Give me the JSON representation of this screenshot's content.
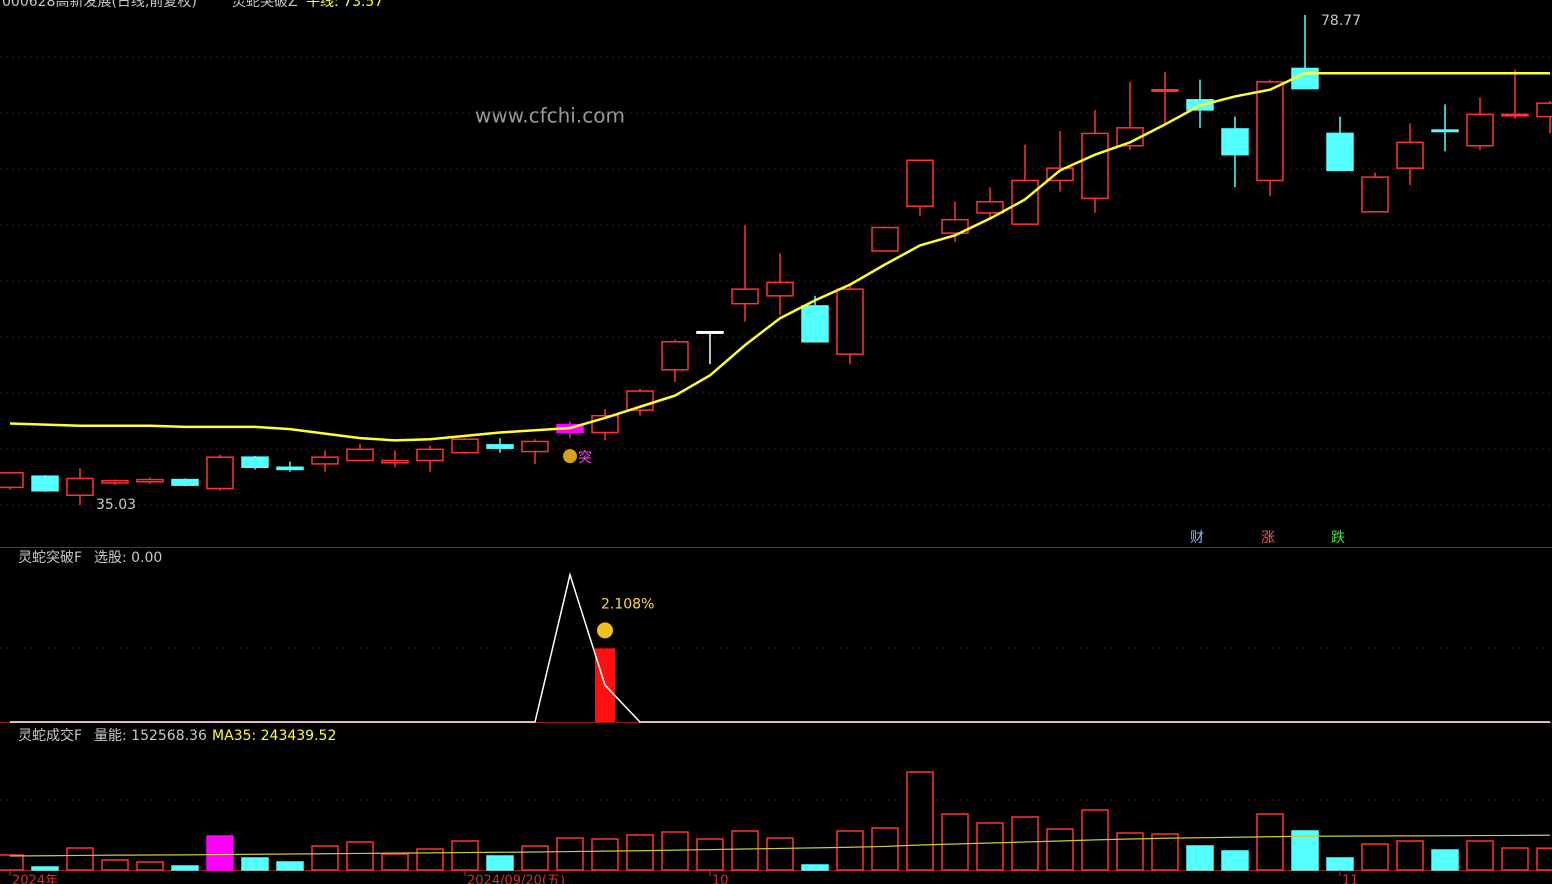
{
  "header": {
    "symbol": "000628高新发展(日线,前复权)",
    "indicator": "灵蛇突破Z",
    "line_label": "牛线: 73.57"
  },
  "watermark": "www.cfchi.com",
  "buttons": [
    "财",
    "涨",
    "跌"
  ],
  "chart_data": [
    {
      "type": "candlestick",
      "hollow_color": "#ff3333",
      "open": [
        36.6,
        37.6,
        35.9,
        37.0,
        37.1,
        37.3,
        36.5,
        39.3,
        38.4,
        38.7,
        39.0,
        38.8,
        39.0,
        39.7,
        40.4,
        39.8,
        41.5,
        41.5,
        43.5,
        47.1,
        50.5,
        53.0,
        53.7,
        52.8,
        48.5,
        57.7,
        61.7,
        59.3,
        61.1,
        60.1,
        64.0,
        62.4,
        67.1,
        72.0,
        71.2,
        68.6,
        64.0,
        74.0,
        68.2,
        61.2,
        65.1,
        68.5,
        67.1,
        69.8,
        69.7
      ],
      "high": [
        38.0,
        37.7,
        38.3,
        37.3,
        37.5,
        37.4,
        39.5,
        39.4,
        38.9,
        39.9,
        40.5,
        39.9,
        40.3,
        41.0,
        41.0,
        40.9,
        42.5,
        43.6,
        45.4,
        49.8,
        50.5,
        60.0,
        57.5,
        53.7,
        54.6,
        59.9,
        65.8,
        62.1,
        63.4,
        67.2,
        68.4,
        70.3,
        72.8,
        73.7,
        73.0,
        69.7,
        73.0,
        78.77,
        69.7,
        64.7,
        69.1,
        70.8,
        71.4,
        73.9,
        71.1
      ],
      "low": [
        36.4,
        36.2,
        35.03,
        36.8,
        36.9,
        36.7,
        36.3,
        38.2,
        38.0,
        38.0,
        38.9,
        38.4,
        38.0,
        39.6,
        39.7,
        38.7,
        41.0,
        40.8,
        43.0,
        46.0,
        47.6,
        51.4,
        52.0,
        49.6,
        47.6,
        57.7,
        60.8,
        58.5,
        60.5,
        60.1,
        63.0,
        61.1,
        66.7,
        69.0,
        68.7,
        63.4,
        62.6,
        72.3,
        64.9,
        61.2,
        63.6,
        66.6,
        66.7,
        69.5,
        68.2
      ],
      "close": [
        37.9,
        36.3,
        37.4,
        37.2,
        37.3,
        36.8,
        39.3,
        38.4,
        38.2,
        39.3,
        40.0,
        39.0,
        40.0,
        40.9,
        40.1,
        40.7,
        42.2,
        43.0,
        45.2,
        49.6,
        50.5,
        54.3,
        54.9,
        49.6,
        54.3,
        59.8,
        65.8,
        60.5,
        62.1,
        64.0,
        65.1,
        68.2,
        68.7,
        72.1,
        70.3,
        66.3,
        72.8,
        72.2,
        64.9,
        64.3,
        67.4,
        68.4,
        69.9,
        69.9,
        70.9
      ],
      "colors": [
        "#ff3333",
        "#54ffff",
        "#ff3333",
        "#ff3333",
        "#ff3333",
        "#54ffff",
        "#ff3333",
        "#54ffff",
        "#54ffff",
        "#ff3333",
        "#ff3333",
        "#ff3333",
        "#ff3333",
        "#ff3333",
        "#54ffff",
        "#ff3333",
        "#ff00ff",
        "#ff3333",
        "#ff3333",
        "#ff3333",
        "#ffffff",
        "#ff3333",
        "#ff3333",
        "#54ffff",
        "#ff3333",
        "#ff3333",
        "#ff3333",
        "#ff3333",
        "#ff3333",
        "#ff3333",
        "#ff3333",
        "#ff3333",
        "#ff3333",
        "#ff3333",
        "#54ffff",
        "#54ffff",
        "#ff3333",
        "#54ffff",
        "#54ffff",
        "#ff3333",
        "#ff3333",
        "#54ffff",
        "#ff3333",
        "#ff3333",
        "#ff3333"
      ],
      "line": {
        "name": "牛线",
        "color": "#ffff33",
        "values": [
          42.3,
          42.2,
          42.1,
          42.1,
          42.1,
          42.0,
          42.0,
          42.0,
          41.8,
          41.4,
          41.0,
          40.8,
          40.9,
          41.2,
          41.5,
          41.7,
          41.9,
          42.8,
          43.8,
          44.8,
          46.6,
          49.3,
          51.7,
          53.3,
          54.7,
          56.5,
          58.2,
          59.1,
          60.6,
          62.3,
          64.9,
          66.3,
          67.4,
          69.0,
          70.7,
          71.5,
          72.1,
          73.57,
          73.57,
          73.57,
          73.57,
          73.57,
          73.57,
          73.57,
          73.57
        ]
      },
      "annotations": [
        {
          "index": 16,
          "text": "突"
        }
      ],
      "ylim": [
        31.28,
        80.11
      ]
    },
    {
      "type": "signal",
      "title": "灵蛇突破F",
      "legend": "选股: 0.00",
      "label": "2.108%",
      "line": {
        "color": "#ffffff",
        "values": [
          0,
          0,
          0,
          0,
          0,
          0,
          0,
          0,
          0,
          0,
          0,
          0,
          0,
          0,
          0,
          0,
          2,
          0.5,
          0,
          0,
          0,
          0,
          0,
          0,
          0,
          0,
          0,
          0,
          0,
          0,
          0,
          0,
          0,
          0,
          0,
          0,
          0,
          0,
          0,
          0,
          0,
          0,
          0,
          0,
          0
        ]
      },
      "bars": {
        "color": "#ff1010",
        "values": [
          null,
          null,
          null,
          null,
          null,
          null,
          null,
          null,
          null,
          null,
          null,
          null,
          null,
          null,
          null,
          null,
          null,
          1,
          null,
          null,
          null,
          null,
          null,
          null,
          null,
          null,
          null,
          null,
          null,
          null,
          null,
          null,
          null,
          null,
          null,
          null,
          null,
          null,
          null,
          null,
          null,
          null,
          null,
          null,
          null
        ]
      },
      "ylim": [
        0,
        2.2
      ]
    },
    {
      "type": "volume",
      "title": "灵蛇成交F",
      "legend": [
        "量能: 152568.36",
        "MA35: 243439.52"
      ],
      "hollow_color": "#ff3333",
      "values": [
        105000,
        21000,
        154000,
        70000,
        56000,
        28000,
        238000,
        84000,
        56000,
        168000,
        196000,
        112000,
        147000,
        203000,
        98000,
        168000,
        224000,
        217000,
        245000,
        266000,
        217000,
        273000,
        224000,
        35000,
        273000,
        294000,
        686000,
        392000,
        329000,
        371000,
        287000,
        420000,
        259000,
        252000,
        168000,
        133000,
        392000,
        273000,
        84000,
        182000,
        203000,
        140000,
        203000,
        154000,
        152568.36
      ],
      "colors": [
        "#ff3333",
        "#54ffff",
        "#ff3333",
        "#ff3333",
        "#ff3333",
        "#54ffff",
        "#ff00ff",
        "#54ffff",
        "#54ffff",
        "#ff3333",
        "#ff3333",
        "#ff3333",
        "#ff3333",
        "#ff3333",
        "#54ffff",
        "#ff3333",
        "#ff3333",
        "#ff3333",
        "#ff3333",
        "#ff3333",
        "#ff3333",
        "#ff3333",
        "#ff3333",
        "#54ffff",
        "#ff3333",
        "#ff3333",
        "#ff3333",
        "#ff3333",
        "#ff3333",
        "#ff3333",
        "#ff3333",
        "#ff3333",
        "#ff3333",
        "#ff3333",
        "#54ffff",
        "#54ffff",
        "#ff3333",
        "#54ffff",
        "#54ffff",
        "#ff3333",
        "#ff3333",
        "#54ffff",
        "#ff3333",
        "#ff3333",
        "#ff3333"
      ],
      "ma": {
        "color": "#cccc33",
        "values": [
          98000,
          100000,
          102000,
          104000,
          105000,
          106000,
          108000,
          110000,
          112000,
          114000,
          116000,
          118000,
          120000,
          122000,
          124000,
          126000,
          129000,
          132000,
          135000,
          139000,
          143000,
          147000,
          151000,
          155000,
          159000,
          165000,
          175000,
          182000,
          189000,
          196000,
          203000,
          211000,
          217000,
          222000,
          226000,
          229000,
          233000,
          236000,
          237000,
          238000,
          239000,
          240000,
          241000,
          242000,
          243439.52
        ]
      },
      "categories": [
        "2024年",
        null,
        null,
        null,
        null,
        null,
        null,
        null,
        null,
        null,
        null,
        null,
        null,
        "2024/09/20(五)",
        null,
        null,
        null,
        null,
        null,
        null,
        "10",
        null,
        null,
        null,
        null,
        null,
        null,
        null,
        null,
        null,
        null,
        null,
        null,
        null,
        null,
        null,
        null,
        null,
        "11",
        null,
        null,
        null,
        null,
        null,
        null
      ],
      "ylim": [
        0,
        875000
      ]
    }
  ]
}
